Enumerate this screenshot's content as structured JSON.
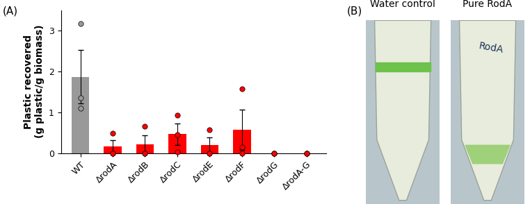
{
  "chart_data": {
    "type": "bar",
    "title": "(A)",
    "y_label": "Plastic recovered\n(g plastic/g biomass)",
    "categories": [
      "WT",
      "ΔrodA",
      "ΔrodB",
      "ΔrodC",
      "ΔrodE",
      "ΔrodF",
      "ΔrodG",
      "ΔrodA-G"
    ],
    "values": [
      1.87,
      0.16,
      0.22,
      0.46,
      0.19,
      0.57,
      0,
      0
    ],
    "errors": [
      0.65,
      0.16,
      0.22,
      0.26,
      0.19,
      0.49,
      0,
      0
    ],
    "points": [
      [
        3.17,
        1.35,
        1.1
      ],
      [
        0.48,
        0,
        0
      ],
      [
        0.65,
        0,
        0
      ],
      [
        0.92,
        0.45,
        0.02
      ],
      [
        0.57,
        0,
        0
      ],
      [
        1.57,
        0.15,
        0
      ],
      [
        0,
        0,
        0
      ],
      [
        0,
        0,
        0
      ]
    ],
    "colors": [
      "#999999",
      "#ff0000",
      "#ff0000",
      "#ff0000",
      "#ff0000",
      "#ff0000",
      "#ff0000",
      "#ff0000"
    ],
    "ylim": [
      0,
      3.5
    ],
    "yticks": [
      0,
      1,
      2,
      3
    ],
    "grid": false
  },
  "photo_panel": {
    "label": "(B)",
    "tubes": [
      {
        "title": "Water control",
        "marking": null
      },
      {
        "title": "Pure RodA",
        "marking": "RodA"
      }
    ]
  }
}
